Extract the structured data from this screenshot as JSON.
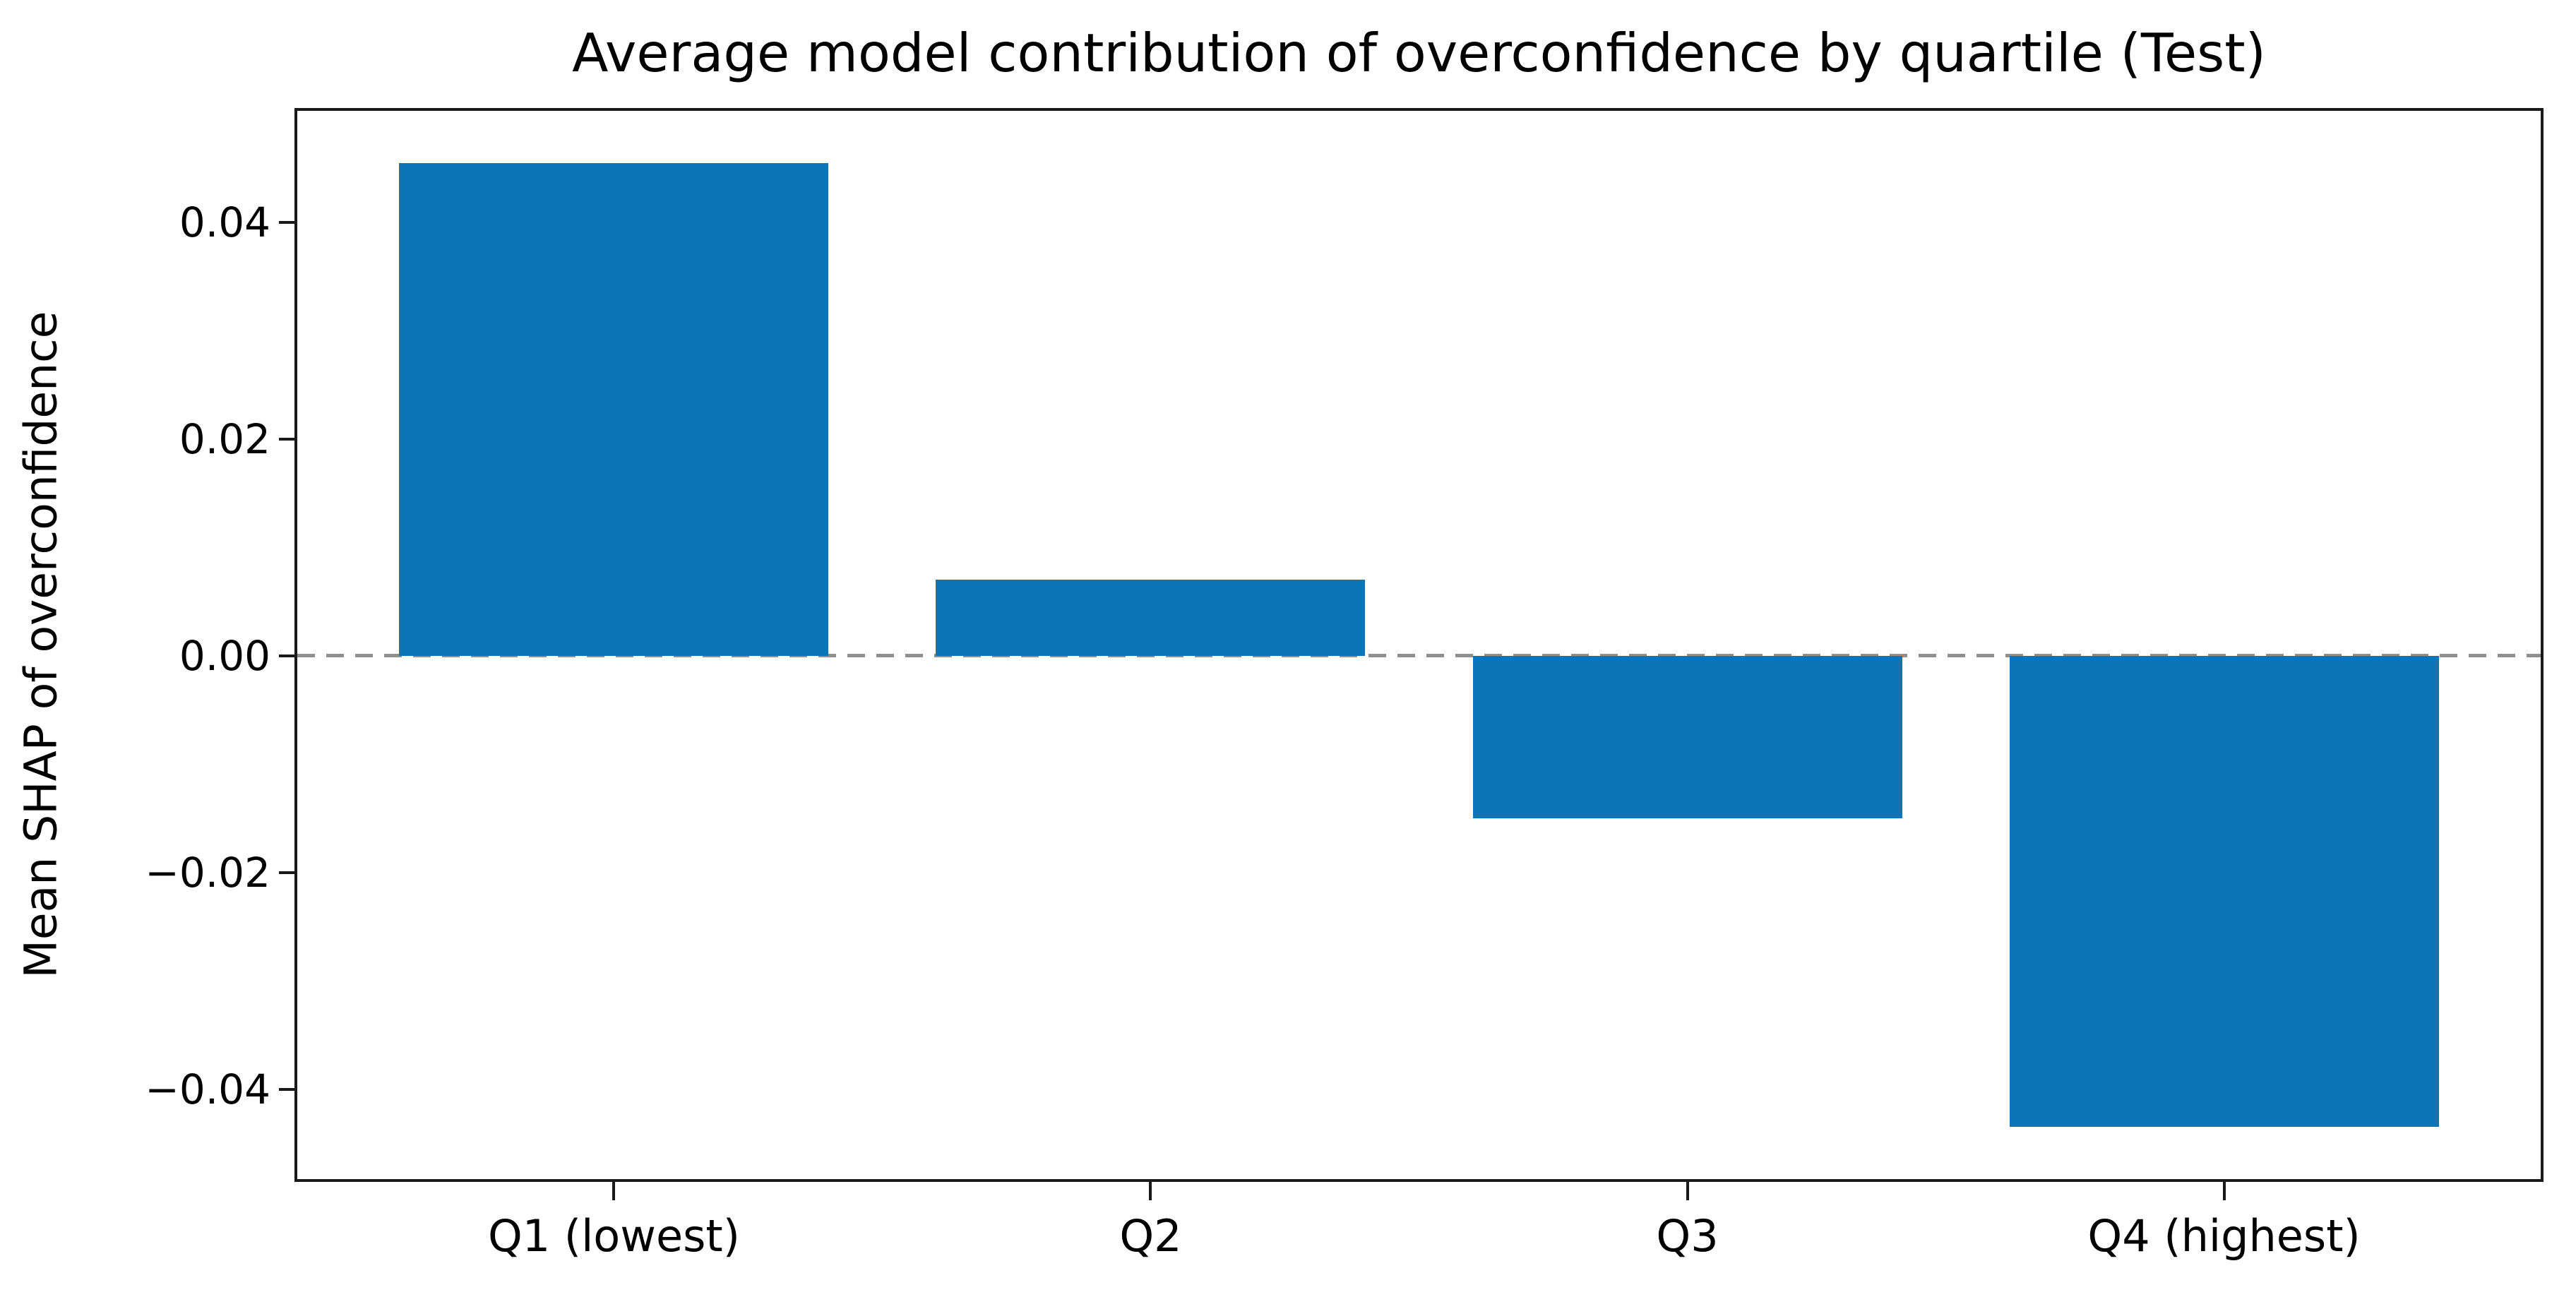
{
  "chart_data": {
    "type": "bar",
    "title": "Average model contribution of overconfidence by quartile (Test)",
    "categories": [
      "Q1 (lowest)",
      "Q2",
      "Q3",
      "Q4 (highest)"
    ],
    "values": [
      0.0455,
      0.007,
      -0.015,
      -0.0435
    ],
    "xlabel": "",
    "ylabel": "Mean SHAP of overconfidence",
    "y_ticks": {
      "values": [
        0.04,
        0.02,
        0,
        -0.02,
        -0.04
      ],
      "labels": [
        "0.04",
        "0.02",
        "0.00",
        "−0.02",
        "−0.04"
      ]
    },
    "ylim": [
      -0.0483,
      0.0503
    ],
    "xlim": [
      -0.59,
      3.59
    ],
    "bar_width": 0.8,
    "grid": false,
    "legend": null,
    "zero_line_style": "dashed",
    "colors": {
      "bar": "#0d74b8",
      "zero_line": "#8f8f8f",
      "spine": "#1a1a1a",
      "text": "#000000"
    }
  }
}
